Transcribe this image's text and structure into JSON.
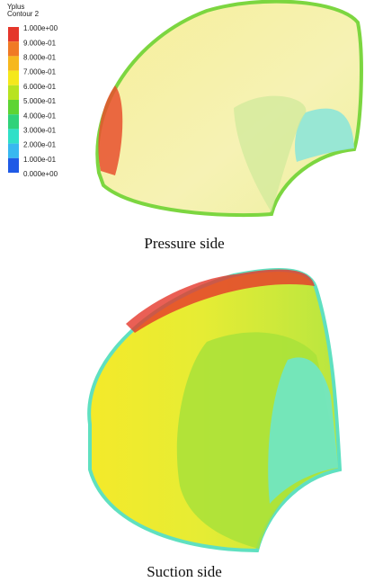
{
  "legend": {
    "title": "Yplus",
    "subtitle": "Contour 2",
    "labels": [
      "1.000e+00",
      "9.000e-01",
      "8.000e-01",
      "7.000e-01",
      "6.000e-01",
      "5.000e-01",
      "4.000e-01",
      "3.000e-01",
      "2.000e-01",
      "1.000e-01",
      "0.000e+00"
    ]
  },
  "captions": {
    "pressure": "Pressure side",
    "suction": "Suction side"
  }
}
